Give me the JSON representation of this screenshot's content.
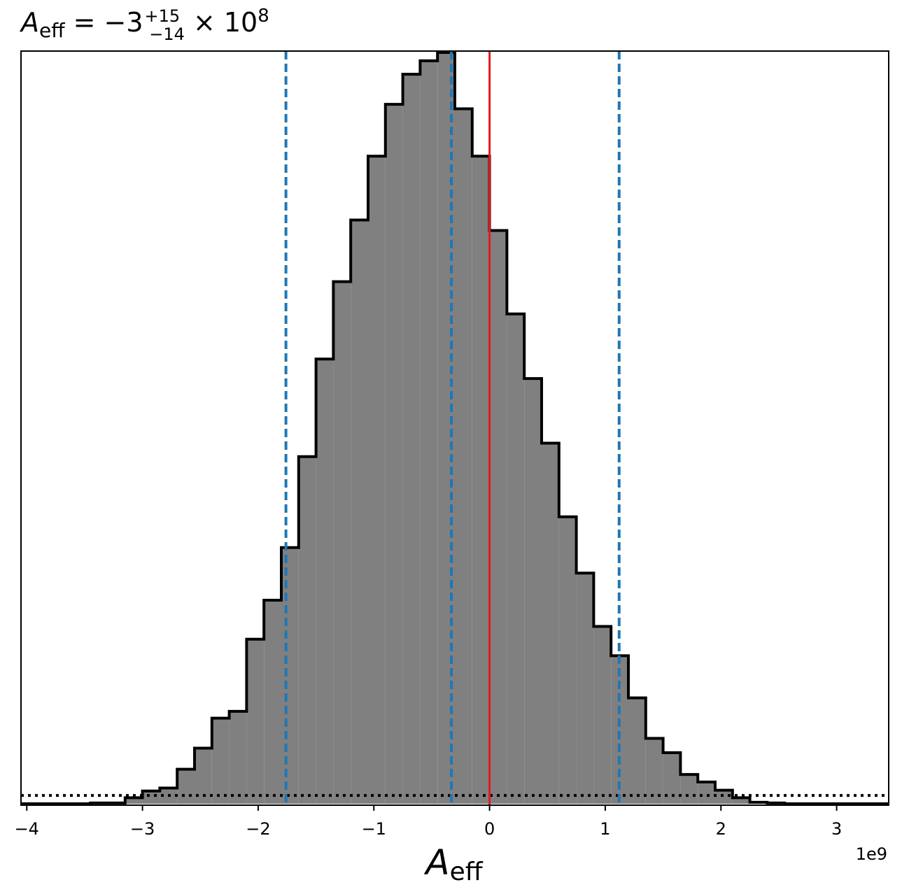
{
  "chart_data": {
    "type": "histogram",
    "title": {
      "var": "A",
      "var_sub": "eff",
      "eq": " = −3",
      "sup": "+15",
      "sub": "−14",
      "times": " × 10",
      "exp": "8"
    },
    "xlabel": {
      "var": "A",
      "sub": "eff"
    },
    "x_offset_label": "1e9",
    "xlim": [
      -4.05,
      3.45
    ],
    "ylim": [
      0,
      1
    ],
    "xticks": [
      -4,
      -3,
      -2,
      -1,
      0,
      1,
      2,
      3
    ],
    "xtick_labels": [
      "−4",
      "−3",
      "−2",
      "−1",
      "0",
      "1",
      "2",
      "3"
    ],
    "bin_edges": [
      -4.05,
      -3.45,
      -3.15,
      -3.0,
      -2.85,
      -2.7,
      -2.55,
      -2.4,
      -2.25,
      -2.1,
      -1.95,
      -1.8,
      -1.65,
      -1.5,
      -1.35,
      -1.2,
      -1.05,
      -0.9,
      -0.75,
      -0.6,
      -0.45,
      -0.3,
      -0.15,
      0.0,
      0.15,
      0.3,
      0.45,
      0.6,
      0.75,
      0.9,
      1.05,
      1.2,
      1.35,
      1.5,
      1.65,
      1.8,
      1.95,
      2.1,
      2.25,
      2.4,
      2.55,
      2.85,
      3.15,
      3.45
    ],
    "counts": [
      0.0,
      0.001,
      0.008,
      0.017,
      0.021,
      0.046,
      0.074,
      0.114,
      0.123,
      0.219,
      0.271,
      0.341,
      0.462,
      0.592,
      0.695,
      0.777,
      0.862,
      0.931,
      0.971,
      0.989,
      1.0,
      0.925,
      0.862,
      0.763,
      0.652,
      0.566,
      0.48,
      0.382,
      0.307,
      0.236,
      0.197,
      0.141,
      0.087,
      0.068,
      0.039,
      0.029,
      0.018,
      0.008,
      0.002,
      0.001,
      0.0,
      0.0,
      0.0
    ],
    "hist_fill": "#808080",
    "hist_edge": "#000000",
    "quantile_lines": [
      -1.76,
      -0.33,
      1.12
    ],
    "quantile_color": "#1f77b4",
    "truth_line": 0.0,
    "truth_color": "#e41a1c",
    "prior_level": 0.011,
    "prior_color": "#000000"
  }
}
